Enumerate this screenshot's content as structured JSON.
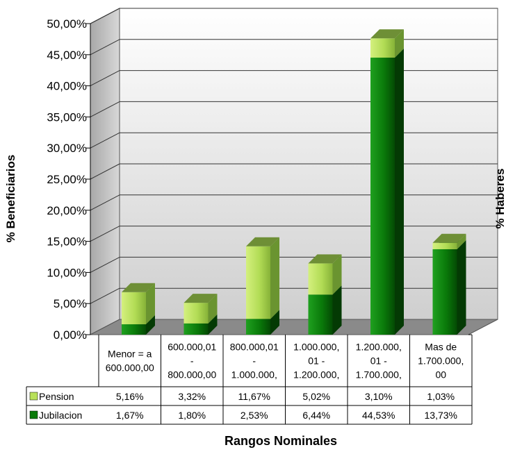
{
  "chart_data": {
    "type": "bar",
    "stacked": true,
    "three_d": true,
    "ylabel": "% Beneficiarios",
    "y2label": "% Haberes",
    "xlabel": "Rangos Nominales",
    "ylim": [
      0,
      50
    ],
    "yticks": [
      "0,00%",
      "5,00%",
      "10,00%",
      "15,00%",
      "20,00%",
      "25,00%",
      "30,00%",
      "35,00%",
      "40,00%",
      "45,00%",
      "50,00%"
    ],
    "categories": [
      [
        "Menor = a",
        "600.000,00"
      ],
      [
        "600.000,01",
        "-",
        "800.000,00"
      ],
      [
        "800.000,01",
        "-",
        "1.000.000,"
      ],
      [
        "1.000.000,",
        "01 -",
        "1.200.000,"
      ],
      [
        "1.200.000,",
        "01 -",
        "1.700.000,"
      ],
      [
        "Mas de",
        "1.700.000,",
        "00"
      ]
    ],
    "series": [
      {
        "name": "Jubilacion",
        "values": [
          1.67,
          1.8,
          2.53,
          6.44,
          44.53,
          13.73
        ],
        "labels": [
          "1,67%",
          "1,80%",
          "2,53%",
          "6,44%",
          "44,53%",
          "13,73%"
        ],
        "color": "#0a7a0a"
      },
      {
        "name": "Pension",
        "values": [
          5.16,
          3.32,
          11.67,
          5.02,
          3.1,
          1.03
        ],
        "labels": [
          "5,16%",
          "3,32%",
          "11,67%",
          "5,02%",
          "3,10%",
          "1,03%"
        ],
        "color": "#b8e05a"
      }
    ],
    "table_order": [
      "Pension",
      "Jubilacion"
    ],
    "grid": true,
    "legend": "table"
  }
}
